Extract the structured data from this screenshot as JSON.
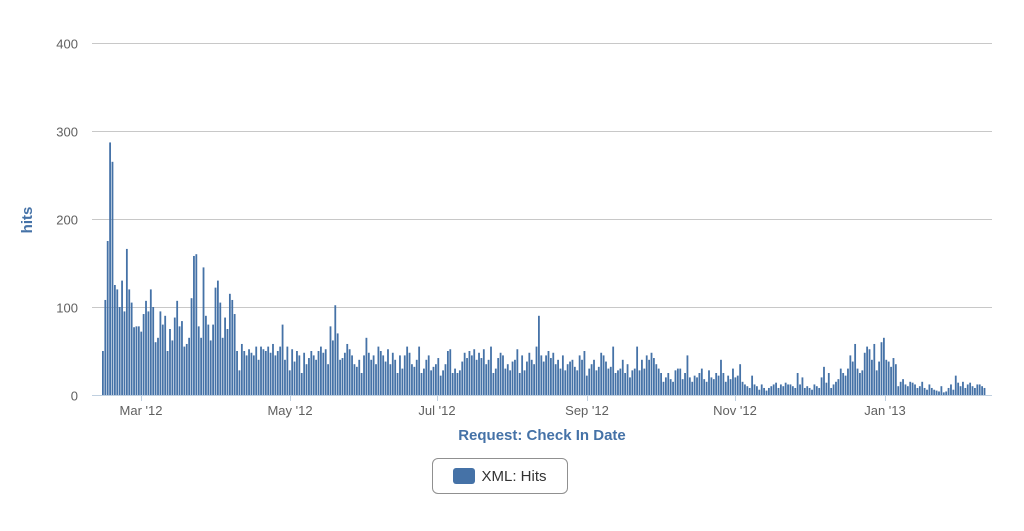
{
  "chart_data": {
    "type": "bar",
    "title": "",
    "xlabel": "Request: Check In Date",
    "ylabel": "hits",
    "ylim": [
      0,
      400
    ],
    "yticks": [
      0,
      100,
      200,
      300,
      400
    ],
    "xticks": [
      "Mar '12",
      "May '12",
      "Jul '12",
      "Sep '12",
      "Nov '12",
      "Jan '13"
    ],
    "grid": true,
    "legend_position": "bottom-center",
    "series": [
      {
        "name": "XML: Hits",
        "color": "#4572a7",
        "start_date": "2012-02-15",
        "interval": "day",
        "values": [
          50,
          108,
          175,
          287,
          265,
          125,
          120,
          100,
          130,
          95,
          166,
          120,
          105,
          77,
          78,
          78,
          72,
          92,
          107,
          95,
          120,
          100,
          60,
          65,
          95,
          80,
          90,
          50,
          75,
          62,
          88,
          107,
          78,
          84,
          55,
          58,
          65,
          110,
          158,
          160,
          78,
          65,
          145,
          90,
          80,
          62,
          80,
          122,
          130,
          105,
          65,
          88,
          75,
          115,
          108,
          92,
          50,
          28,
          58,
          50,
          45,
          52,
          48,
          45,
          55,
          40,
          55,
          52,
          50,
          55,
          48,
          58,
          45,
          50,
          55,
          80,
          40,
          55,
          28,
          52,
          38,
          50,
          45,
          25,
          48,
          35,
          42,
          50,
          45,
          40,
          50,
          55,
          48,
          52,
          35,
          78,
          62,
          102,
          70,
          40,
          42,
          48,
          58,
          52,
          45,
          35,
          32,
          40,
          25,
          45,
          65,
          48,
          40,
          45,
          35,
          55,
          50,
          45,
          38,
          52,
          35,
          48,
          40,
          25,
          45,
          30,
          45,
          55,
          48,
          35,
          32,
          40,
          55,
          25,
          30,
          40,
          45,
          28,
          32,
          35,
          42,
          22,
          28,
          35,
          50,
          52,
          25,
          30,
          25,
          28,
          38,
          48,
          42,
          50,
          45,
          52,
          40,
          48,
          42,
          52,
          35,
          40,
          55,
          25,
          30,
          42,
          48,
          45,
          30,
          35,
          28,
          38,
          40,
          52,
          25,
          45,
          28,
          38,
          48,
          40,
          35,
          55,
          90,
          45,
          38,
          45,
          50,
          42,
          48,
          35,
          40,
          30,
          45,
          28,
          35,
          38,
          40,
          32,
          28,
          45,
          40,
          50,
          22,
          30,
          35,
          40,
          28,
          32,
          48,
          45,
          38,
          30,
          32,
          55,
          25,
          28,
          30,
          40,
          25,
          35,
          20,
          28,
          30,
          55,
          28,
          40,
          30,
          45,
          40,
          48,
          42,
          35,
          30,
          25,
          15,
          20,
          25,
          18,
          15,
          28,
          30,
          30,
          18,
          25,
          45,
          20,
          15,
          22,
          20,
          25,
          30,
          18,
          15,
          28,
          20,
          18,
          25,
          22,
          40,
          25,
          15,
          22,
          18,
          30,
          20,
          22,
          35,
          15,
          12,
          10,
          8,
          22,
          12,
          10,
          6,
          12,
          8,
          5,
          8,
          10,
          12,
          14,
          8,
          12,
          10,
          14,
          12,
          12,
          10,
          8,
          25,
          12,
          20,
          8,
          10,
          8,
          6,
          12,
          10,
          8,
          20,
          32,
          14,
          25,
          8,
          12,
          15,
          18,
          30,
          25,
          22,
          30,
          45,
          38,
          58,
          30,
          25,
          28,
          48,
          55,
          52,
          40,
          58,
          28,
          38,
          60,
          65,
          40,
          38,
          32,
          42,
          35,
          10,
          15,
          18,
          12,
          10,
          15,
          14,
          12,
          8,
          10,
          15,
          8,
          6,
          12,
          8,
          6,
          5,
          4,
          10,
          3,
          4,
          8,
          12,
          6,
          22,
          14,
          10,
          15,
          8,
          12,
          14,
          10,
          8,
          12,
          12,
          10,
          8
        ]
      }
    ]
  },
  "legend": {
    "items": [
      {
        "label": "XML: Hits",
        "color": "#4572a7"
      }
    ]
  },
  "axes": {
    "x_title": "Request: Check In Date",
    "y_title": "hits",
    "y_tick_labels": [
      "0",
      "100",
      "200",
      "300",
      "400"
    ],
    "x_tick_labels": [
      "Mar '12",
      "May '12",
      "Jul '12",
      "Sep '12",
      "Nov '12",
      "Jan '13"
    ]
  }
}
